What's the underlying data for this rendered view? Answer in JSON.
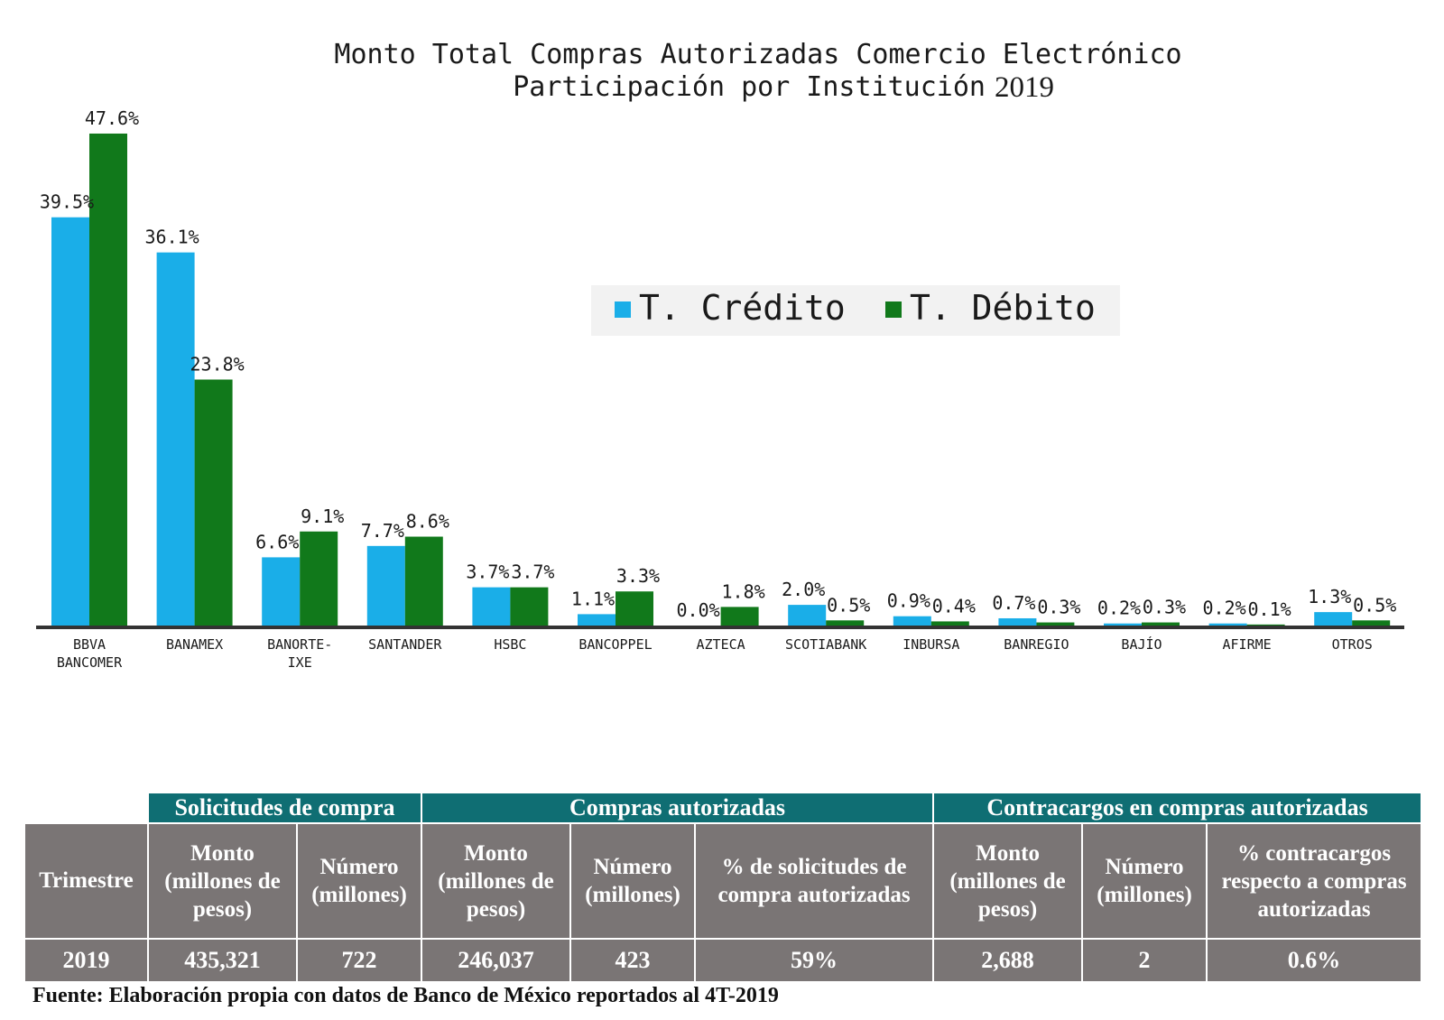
{
  "chart_data": {
    "type": "bar",
    "title_line1": "Monto Total Compras Autorizadas Comercio Electrónico",
    "title_line2": "Participación por Institución",
    "title_year": "2019",
    "xlabel": "",
    "ylabel": "",
    "ylim": [
      0,
      50
    ],
    "grid": false,
    "legend_position": "top-right",
    "categories": [
      "BBVA BANCOMER",
      "BANAMEX",
      "BANORTE-IXE",
      "SANTANDER",
      "HSBC",
      "BANCOPPEL",
      "AZTECA",
      "SCOTIABANK",
      "INBURSA",
      "BANREGIO",
      "BAJÍO",
      "AFIRME",
      "OTROS"
    ],
    "category_lines": [
      [
        "BBVA",
        "BANCOMER"
      ],
      [
        "BANAMEX"
      ],
      [
        "BANORTE-",
        "IXE"
      ],
      [
        "SANTANDER"
      ],
      [
        "HSBC"
      ],
      [
        "BANCOPPEL"
      ],
      [
        "AZTECA"
      ],
      [
        "SCOTIABANK"
      ],
      [
        "INBURSA"
      ],
      [
        "BANREGIO"
      ],
      [
        "BAJÍO"
      ],
      [
        "AFIRME"
      ],
      [
        "OTROS"
      ]
    ],
    "series": [
      {
        "name": "T. Crédito",
        "color": "#1aaee8",
        "values": [
          39.5,
          36.1,
          6.6,
          7.7,
          3.7,
          1.1,
          0.0,
          2.0,
          0.9,
          0.7,
          0.2,
          0.2,
          1.3
        ],
        "labels": [
          "39.5%",
          "36.1%",
          "6.6%",
          "7.7%",
          "3.7%",
          "1.1%",
          "0.0%",
          "2.0%",
          "0.9%",
          "0.7%",
          "0.2%",
          "0.2%",
          "1.3%"
        ]
      },
      {
        "name": "T. Débito",
        "color": "#11791b",
        "values": [
          47.6,
          23.8,
          9.1,
          8.6,
          3.7,
          3.3,
          1.8,
          0.5,
          0.4,
          0.3,
          0.3,
          0.1,
          0.5
        ],
        "labels": [
          "47.6%",
          "23.8%",
          "9.1%",
          "8.6%",
          "3.7%",
          "3.3%",
          "1.8%",
          "0.5%",
          "0.4%",
          "0.3%",
          "0.3%",
          "0.1%",
          "0.5%"
        ]
      }
    ]
  },
  "table": {
    "group_headers": {
      "solicitudes": "Solicitudes de compra",
      "compras": "Compras autorizadas",
      "contracargos": "Contracargos en compras autorizadas"
    },
    "trimestre_label": "Trimestre",
    "sub_headers": {
      "sol_monto": "Monto (millones de pesos)",
      "sol_numero": "Número (millones)",
      "comp_monto": "Monto (millones de pesos)",
      "comp_numero": "Número (millones)",
      "comp_pct": "% de solicitudes de compra autorizadas",
      "con_monto": "Monto (millones de pesos)",
      "con_numero": "Número (millones)",
      "con_pct": "% contracargos respecto a compras autorizadas"
    },
    "row": {
      "trimestre": "2019",
      "sol_monto": "435,321",
      "sol_numero": "722",
      "comp_monto": "246,037",
      "comp_numero": "423",
      "comp_pct": "59%",
      "con_monto": "2,688",
      "con_numero": "2",
      "con_pct": "0.6%"
    }
  },
  "source_note": "Fuente: Elaboración propia con datos de Banco de México reportados al 4T-2019"
}
